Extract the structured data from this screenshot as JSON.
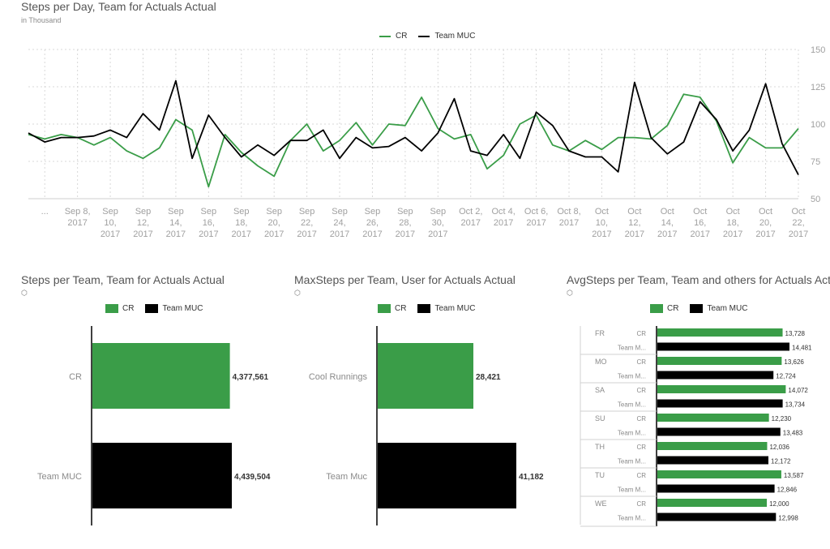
{
  "colors": {
    "cr": "#3a9d48",
    "muc": "#000000",
    "axis_text": "#a0a0a0",
    "grid": "#d8d8d8"
  },
  "line_panel": {
    "title": "Steps per Day, Team for Actuals Actual",
    "subtitle": "in Thousand",
    "legend": [
      "CR",
      "Team MUC"
    ]
  },
  "bar_panels": [
    {
      "title": "Steps per Team, Team for Actuals Actual",
      "legend": [
        "CR",
        "Team MUC"
      ]
    },
    {
      "title": "MaxSteps per Team, User for Actuals Actual",
      "legend": [
        "CR",
        "Team MUC"
      ]
    },
    {
      "title": "AvgSteps per Team, Team and others for Actuals Actual",
      "legend": [
        "CR",
        "Team MUC"
      ]
    }
  ],
  "chart_data": [
    {
      "type": "line",
      "title": "Steps per Day, Team for Actuals Actual",
      "subtitle": "in Thousand",
      "y_axis_side": "right",
      "ylim": [
        50,
        150
      ],
      "yticks": [
        50,
        75,
        100,
        125,
        150
      ],
      "x_tick_labels": [
        "...",
        "Sep 8, 2017",
        "Sep 10, 2017",
        "Sep 12, 2017",
        "Sep 14, 2017",
        "Sep 16, 2017",
        "Sep 18, 2017",
        "Sep 20, 2017",
        "Sep 22, 2017",
        "Sep 24, 2017",
        "Sep 26, 2017",
        "Sep 28, 2017",
        "Sep 30, 2017",
        "Oct 2, 2017",
        "Oct 4, 2017",
        "Oct 6, 2017",
        "Oct 8, 2017",
        "Oct 10, 2017",
        "Oct 12, 2017",
        "Oct 14, 2017",
        "Oct 16, 2017",
        "Oct 18, 2017",
        "Oct 20, 2017",
        "Oct 22, 2017"
      ],
      "x": [
        "Sep 6",
        "Sep 7",
        "Sep 8",
        "Sep 9",
        "Sep 10",
        "Sep 11",
        "Sep 12",
        "Sep 13",
        "Sep 14",
        "Sep 15",
        "Sep 16",
        "Sep 17",
        "Sep 18",
        "Sep 19",
        "Sep 20",
        "Sep 21",
        "Sep 22",
        "Sep 23",
        "Sep 24",
        "Sep 25",
        "Sep 26",
        "Sep 27",
        "Sep 28",
        "Sep 29",
        "Sep 30",
        "Oct 1",
        "Oct 2",
        "Oct 3",
        "Oct 4",
        "Oct 5",
        "Oct 6",
        "Oct 7",
        "Oct 8",
        "Oct 9",
        "Oct 10",
        "Oct 11",
        "Oct 12",
        "Oct 13",
        "Oct 14",
        "Oct 15",
        "Oct 16",
        "Oct 17",
        "Oct 18",
        "Oct 19",
        "Oct 20",
        "Oct 21",
        "Oct 22",
        "Oct 23"
      ],
      "series": [
        {
          "name": "CR",
          "color": "#3a9d48",
          "values": [
            93,
            90,
            93,
            91,
            86,
            91,
            82,
            77,
            84,
            103,
            96,
            58,
            93,
            81,
            72,
            65,
            89,
            100,
            82,
            89,
            101,
            86,
            100,
            99,
            118,
            97,
            90,
            93,
            70,
            79,
            100,
            106,
            86,
            82,
            89,
            83,
            91,
            91,
            90,
            99,
            120,
            118,
            102,
            74,
            91,
            84,
            84,
            97
          ]
        },
        {
          "name": "Team MUC",
          "color": "#000000",
          "values": [
            94,
            88,
            91,
            91,
            92,
            96,
            91,
            107,
            96,
            129,
            77,
            106,
            91,
            78,
            86,
            79,
            89,
            89,
            96,
            77,
            91,
            84,
            85,
            91,
            82,
            94,
            117,
            82,
            79,
            93,
            77,
            108,
            99,
            82,
            78,
            78,
            68,
            128,
            91,
            80,
            88,
            115,
            103,
            82,
            96,
            127,
            87,
            66
          ]
        }
      ]
    },
    {
      "type": "bar",
      "orientation": "horizontal",
      "title": "Steps per Team, Team for Actuals Actual",
      "categories": [
        "CR",
        "Team MUC"
      ],
      "values": [
        4377561,
        4439504
      ],
      "value_labels": [
        "4,377,561",
        "4,439,504"
      ],
      "colors": [
        "#3a9d48",
        "#000000"
      ],
      "legend": "top"
    },
    {
      "type": "bar",
      "orientation": "horizontal",
      "title": "MaxSteps per Team, User for Actuals Actual",
      "categories": [
        "Cool Runnings",
        "Team Muc"
      ],
      "values": [
        28421,
        41182
      ],
      "value_labels": [
        "28,421",
        "41,182"
      ],
      "colors": [
        "#3a9d48",
        "#000000"
      ],
      "legend": "top"
    },
    {
      "type": "bar",
      "orientation": "horizontal",
      "title": "AvgSteps per Team, Team and others for Actuals Actual",
      "legend": "top",
      "groups": [
        {
          "day": "FR",
          "bars": [
            {
              "team": "CR",
              "value": 13728,
              "label": "13,728"
            },
            {
              "team": "Team M...",
              "value": 14481,
              "label": "14,481"
            }
          ]
        },
        {
          "day": "MO",
          "bars": [
            {
              "team": "CR",
              "value": 13626,
              "label": "13,626"
            },
            {
              "team": "Team M...",
              "value": 12724,
              "label": "12,724"
            }
          ]
        },
        {
          "day": "SA",
          "bars": [
            {
              "team": "CR",
              "value": 14072,
              "label": "14,072"
            },
            {
              "team": "Team M...",
              "value": 13734,
              "label": "13,734"
            }
          ]
        },
        {
          "day": "SU",
          "bars": [
            {
              "team": "CR",
              "value": 12230,
              "label": "12,230"
            },
            {
              "team": "Team M...",
              "value": 13483,
              "label": "13,483"
            }
          ]
        },
        {
          "day": "TH",
          "bars": [
            {
              "team": "CR",
              "value": 12036,
              "label": "12,036"
            },
            {
              "team": "Team M...",
              "value": 12172,
              "label": "12,172"
            }
          ]
        },
        {
          "day": "TU",
          "bars": [
            {
              "team": "CR",
              "value": 13587,
              "label": "13,587"
            },
            {
              "team": "Team M...",
              "value": 12846,
              "label": "12,846"
            }
          ]
        },
        {
          "day": "WE",
          "bars": [
            {
              "team": "CR",
              "value": 12000,
              "label": "12,000"
            },
            {
              "team": "Team M...",
              "value": 12998,
              "label": "12,998"
            }
          ]
        }
      ]
    }
  ]
}
